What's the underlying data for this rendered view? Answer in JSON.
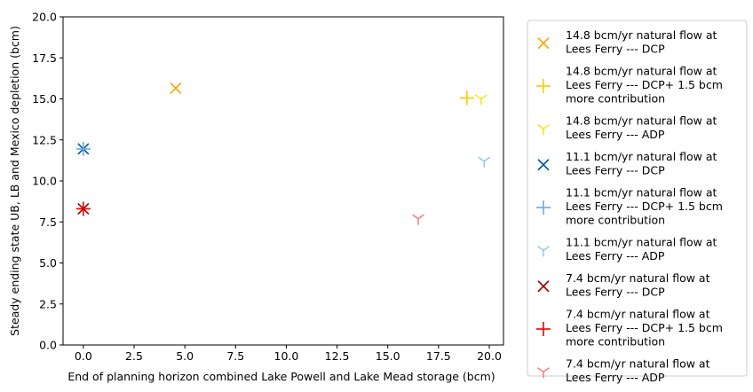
{
  "chart_data": {
    "type": "scatter",
    "xlabel": "End of planning horizon combined Lake Powell and Lake Mead storage (bcm)",
    "ylabel": "Steady ending state UB, LB and Mexico depletion (bcm)",
    "xlim": [
      -1.0,
      20.7
    ],
    "ylim": [
      0,
      20
    ],
    "xticks": [
      "0.0",
      "2.5",
      "5.0",
      "7.5",
      "10.0",
      "12.5",
      "15.0",
      "17.5",
      "20.0"
    ],
    "yticks": [
      "0.0",
      "2.5",
      "5.0",
      "7.5",
      "10.0",
      "12.5",
      "15.0",
      "17.5",
      "20.0"
    ],
    "grid": false,
    "legend_position": "outside-right",
    "series": [
      {
        "name": "14.8 bcm/yr natural flow at Lees Ferry --- DCP",
        "marker": "x",
        "color": "#FFA500",
        "points": [
          [
            4.55,
            15.65
          ]
        ]
      },
      {
        "name": "14.8 bcm/yr natural flow at Lees Ferry --- DCP+ 1.5 bcm more contribution",
        "marker": "plus",
        "color": "#FFC800",
        "points": [
          [
            18.9,
            15.05
          ]
        ]
      },
      {
        "name": "14.8 bcm/yr natural flow at Lees Ferry --- ADP",
        "marker": "tri",
        "color": "#F5E626",
        "points": [
          [
            19.6,
            15.0
          ]
        ]
      },
      {
        "name": "11.1 bcm/yr natural flow at Lees Ferry --- DCP",
        "marker": "x",
        "color": "#00589E",
        "points": [
          [
            0.0,
            11.95
          ]
        ]
      },
      {
        "name": "11.1 bcm/yr natural flow at Lees Ferry --- DCP+ 1.5 bcm more contribution",
        "marker": "plus",
        "color": "#6FA8DC",
        "points": [
          [
            0.0,
            11.95
          ]
        ]
      },
      {
        "name": "11.1 bcm/yr natural flow at Lees Ferry --- ADP",
        "marker": "tri",
        "color": "#93CDEF",
        "points": [
          [
            19.75,
            11.2
          ]
        ]
      },
      {
        "name": "7.4 bcm/yr natural flow at Lees Ferry --- DCP",
        "marker": "x",
        "color": "#A30000",
        "points": [
          [
            0.0,
            8.3
          ]
        ]
      },
      {
        "name": "7.4 bcm/yr natural flow at Lees Ferry --- DCP+ 1.5 bcm more contribution",
        "marker": "plus",
        "color": "#E60000",
        "points": [
          [
            0.0,
            8.3
          ]
        ]
      },
      {
        "name": "7.4 bcm/yr natural flow at Lees Ferry --- ADP",
        "marker": "tri",
        "color": "#F58282",
        "points": [
          [
            16.5,
            7.7
          ]
        ]
      }
    ],
    "legend_lines": [
      [
        "14.8 bcm/yr natural flow at",
        "Lees Ferry --- DCP"
      ],
      [
        "14.8 bcm/yr natural flow at",
        "Lees Ferry --- DCP+ 1.5 bcm",
        "more contribution"
      ],
      [
        "14.8 bcm/yr natural flow at",
        "Lees Ferry --- ADP"
      ],
      [
        "11.1 bcm/yr natural flow at",
        "Lees Ferry --- DCP"
      ],
      [
        "11.1 bcm/yr natural flow at",
        "Lees Ferry --- DCP+ 1.5 bcm",
        "more contribution"
      ],
      [
        "11.1 bcm/yr natural flow at",
        "Lees Ferry --- ADP"
      ],
      [
        "7.4 bcm/yr natural flow at",
        "Lees Ferry --- DCP"
      ],
      [
        "7.4 bcm/yr natural flow at",
        "Lees Ferry --- DCP+ 1.5 bcm",
        "more contribution"
      ],
      [
        "7.4 bcm/yr natural flow at",
        "Lees Ferry --- ADP"
      ]
    ]
  }
}
